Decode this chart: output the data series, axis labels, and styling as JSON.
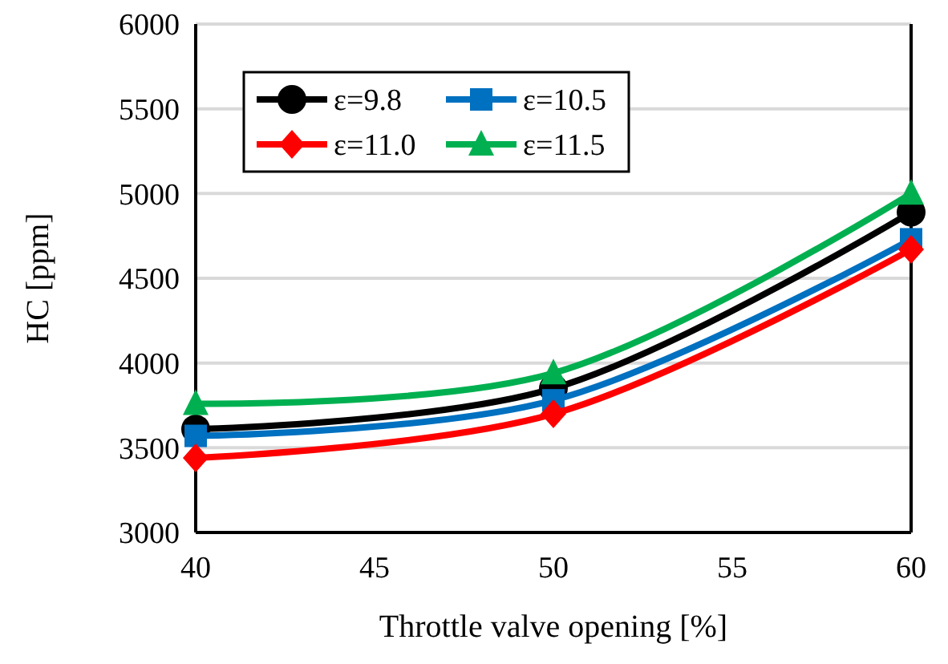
{
  "chart_data": {
    "type": "line",
    "xlabel": "Throttle valve opening [%]",
    "ylabel": "HC [ppm]",
    "x": [
      40,
      50,
      60
    ],
    "xlim": [
      40,
      60
    ],
    "xticks": [
      40,
      45,
      50,
      55,
      60
    ],
    "ylim": [
      3000,
      6000
    ],
    "yticks": [
      3000,
      3500,
      4000,
      4500,
      5000,
      5500,
      6000
    ],
    "grid": "y",
    "legend": "top left",
    "line_style": "solid",
    "series": [
      {
        "name": "ε=9.8",
        "color": "#000000",
        "marker": "circle",
        "values": [
          3610,
          3850,
          4890
        ]
      },
      {
        "name": "ε=10.5",
        "color": "#0070c0",
        "marker": "square",
        "values": [
          3570,
          3780,
          4730
        ]
      },
      {
        "name": "ε=11.0",
        "color": "#ff0000",
        "marker": "diamond",
        "values": [
          3440,
          3700,
          4670
        ]
      },
      {
        "name": "ε=11.5",
        "color": "#00b050",
        "marker": "triangle",
        "values": [
          3760,
          3940,
          5000
        ]
      }
    ]
  }
}
